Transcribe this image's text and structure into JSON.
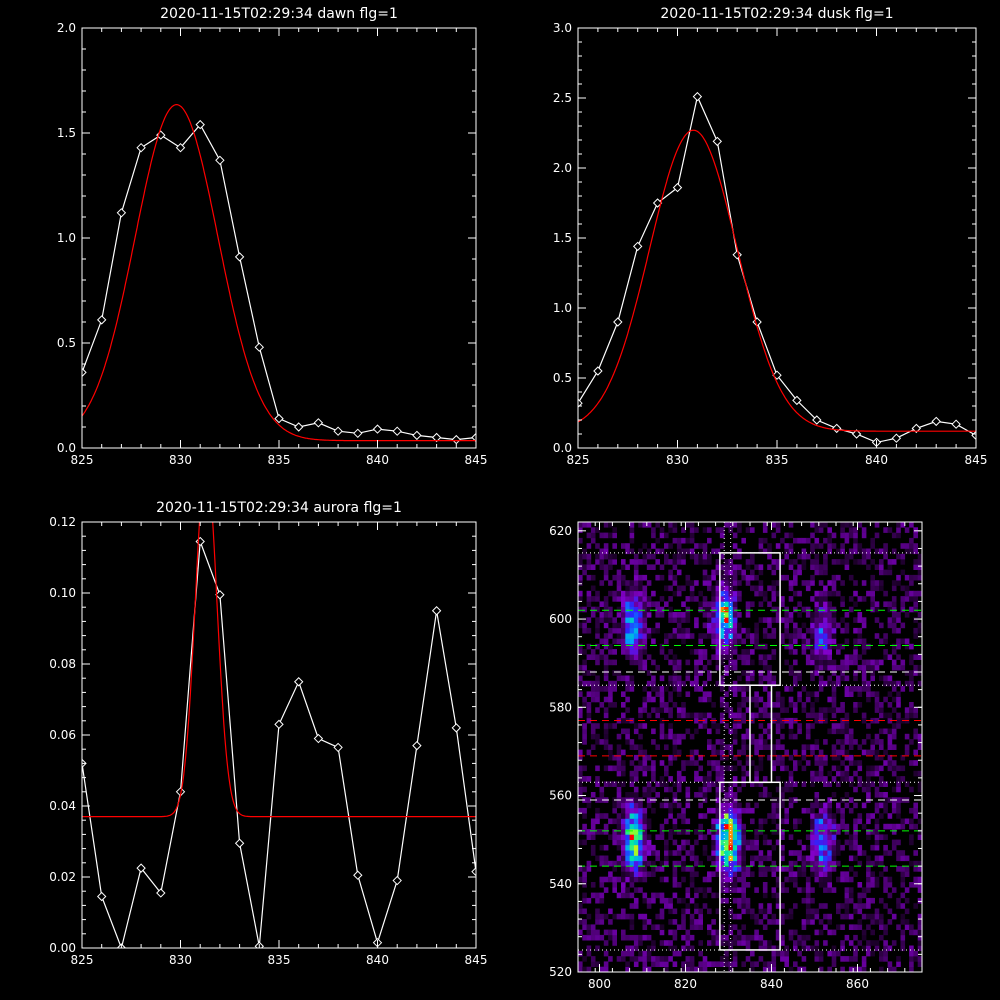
{
  "chart_data": [
    {
      "type": "line",
      "title": "2020-11-15T02:29:34 dawn flg=1",
      "xlim": [
        825,
        845
      ],
      "ylim": [
        0.0,
        2.0
      ],
      "x_ticks": [
        825,
        830,
        835,
        840,
        845
      ],
      "x_tick_labels": [
        "825",
        "830",
        "835",
        "840",
        "845"
      ],
      "y_ticks": [
        0.0,
        0.5,
        1.0,
        1.5,
        2.0
      ],
      "y_tick_labels": [
        "0.0",
        "0.5",
        "1.0",
        "1.5",
        "2.0"
      ],
      "grid": false,
      "series": [
        {
          "color": "#ffffff",
          "markers": "diamond",
          "x": [
            825,
            826,
            827,
            828,
            829,
            830,
            831,
            832,
            833,
            834,
            835,
            836,
            837,
            838,
            839,
            840,
            841,
            842,
            843,
            844,
            845
          ],
          "y": [
            0.36,
            0.61,
            1.12,
            1.43,
            1.49,
            1.43,
            1.54,
            1.37,
            0.91,
            0.48,
            0.14,
            0.1,
            0.12,
            0.08,
            0.07,
            0.09,
            0.08,
            0.06,
            0.05,
            0.04,
            0.05
          ]
        },
        {
          "color": "#ff0000",
          "markers": "none",
          "fit": {
            "kind": "gaussian",
            "amp": 1.6,
            "center": 829.8,
            "sigma": 2.1,
            "base": 0.035
          }
        }
      ]
    },
    {
      "type": "line",
      "title": "2020-11-15T02:29:34 dusk flg=1",
      "xlim": [
        825,
        845
      ],
      "ylim": [
        0.0,
        3.0
      ],
      "x_ticks": [
        825,
        830,
        835,
        840,
        845
      ],
      "x_tick_labels": [
        "825",
        "830",
        "835",
        "840",
        "845"
      ],
      "y_ticks": [
        0.0,
        0.5,
        1.0,
        1.5,
        2.0,
        2.5,
        3.0
      ],
      "y_tick_labels": [
        "0.0",
        "0.5",
        "1.0",
        "1.5",
        "2.0",
        "2.5",
        "3.0"
      ],
      "grid": false,
      "series": [
        {
          "color": "#ffffff",
          "markers": "diamond",
          "x": [
            825,
            826,
            827,
            828,
            829,
            830,
            831,
            832,
            833,
            834,
            835,
            836,
            837,
            838,
            839,
            840,
            841,
            842,
            843,
            844,
            845
          ],
          "y": [
            0.32,
            0.55,
            0.9,
            1.44,
            1.75,
            1.86,
            2.51,
            2.19,
            1.38,
            0.9,
            0.52,
            0.34,
            0.2,
            0.14,
            0.1,
            0.04,
            0.07,
            0.14,
            0.19,
            0.17,
            0.09
          ]
        },
        {
          "color": "#ff0000",
          "markers": "none",
          "fit": {
            "kind": "gaussian",
            "amp": 2.15,
            "center": 830.8,
            "sigma": 2.2,
            "base": 0.12
          }
        }
      ]
    },
    {
      "type": "line",
      "title": "2020-11-15T02:29:34 aurora flg=1",
      "xlim": [
        825,
        845
      ],
      "ylim": [
        0.0,
        0.12
      ],
      "x_ticks": [
        825,
        830,
        835,
        840,
        845
      ],
      "x_tick_labels": [
        "825",
        "830",
        "835",
        "840",
        "845"
      ],
      "y_ticks": [
        0.0,
        0.02,
        0.04,
        0.06,
        0.08,
        0.1,
        0.12
      ],
      "y_tick_labels": [
        "0.00",
        "0.02",
        "0.04",
        "0.06",
        "0.08",
        "0.10",
        "0.12"
      ],
      "grid": false,
      "series": [
        {
          "color": "#ffffff",
          "markers": "diamond",
          "x": [
            825,
            826,
            827,
            828,
            829,
            830,
            831,
            832,
            833,
            834,
            835,
            836,
            837,
            838,
            839,
            840,
            841,
            842,
            843,
            844,
            845
          ],
          "y": [
            0.052,
            0.0145,
            0.0,
            0.0225,
            0.0155,
            0.044,
            0.1145,
            0.0995,
            0.0295,
            0.0005,
            0.063,
            0.075,
            0.059,
            0.0565,
            0.0205,
            0.0015,
            0.019,
            0.057,
            0.095,
            0.062,
            0.0215
          ]
        },
        {
          "color": "#ff0000",
          "markers": "none",
          "fit": {
            "kind": "gaussian",
            "amp": 0.1,
            "center": 831.3,
            "sigma": 0.55,
            "base": 0.037
          }
        }
      ]
    },
    {
      "type": "heatmap",
      "xlim": [
        795,
        875
      ],
      "ylim": [
        520,
        622
      ],
      "x_ticks": [
        800,
        820,
        840,
        860
      ],
      "x_tick_labels": [
        "800",
        "820",
        "840",
        "860"
      ],
      "y_ticks": [
        520,
        540,
        560,
        580,
        600,
        620
      ],
      "y_tick_labels": [
        "520",
        "540",
        "560",
        "580",
        "600",
        "620"
      ],
      "colormap": "rainbow-on-black",
      "blobs": [
        {
          "x": 808,
          "y": 599,
          "peak": 0.55
        },
        {
          "x": 808,
          "y": 550,
          "peak": 0.7
        },
        {
          "x": 829,
          "y": 600,
          "peak": 0.7
        },
        {
          "x": 830,
          "y": 550,
          "peak": 1.0
        },
        {
          "x": 852,
          "y": 597,
          "peak": 0.3
        },
        {
          "x": 852,
          "y": 549,
          "peak": 0.45
        }
      ],
      "boxes": [
        {
          "x": [
            828,
            842
          ],
          "y": [
            585,
            615
          ],
          "color": "#ffffff"
        },
        {
          "x": [
            835,
            840
          ],
          "y": [
            563,
            585
          ],
          "color": "#ffffff"
        },
        {
          "x": [
            828,
            842
          ],
          "y": [
            525,
            563
          ],
          "color": "#ffffff"
        }
      ],
      "hlines": [
        {
          "y": 615,
          "color": "#ffffff",
          "style": "dotted"
        },
        {
          "y": 602,
          "color": "#00ff00",
          "style": "dashed"
        },
        {
          "y": 594,
          "color": "#00ff00",
          "style": "dashed"
        },
        {
          "y": 588,
          "color": "#ffffff",
          "style": "dashed"
        },
        {
          "y": 585,
          "color": "#ffffff",
          "style": "dotted"
        },
        {
          "y": 577,
          "color": "#ff0000",
          "style": "dashed"
        },
        {
          "y": 569,
          "color": "#ff0000",
          "style": "dashed"
        },
        {
          "y": 563,
          "color": "#ffffff",
          "style": "dotted"
        },
        {
          "y": 559,
          "color": "#ffffff",
          "style": "dashed"
        },
        {
          "y": 552,
          "color": "#00ff00",
          "style": "dashed"
        },
        {
          "y": 544,
          "color": "#00ff00",
          "style": "dashed"
        },
        {
          "y": 525,
          "color": "#ffffff",
          "style": "dotted"
        }
      ],
      "vlines": [
        {
          "x": 829,
          "color": "#ffffff",
          "style": "dotted"
        },
        {
          "x": 830.5,
          "color": "#ffffff",
          "style": "dotted"
        }
      ]
    }
  ]
}
